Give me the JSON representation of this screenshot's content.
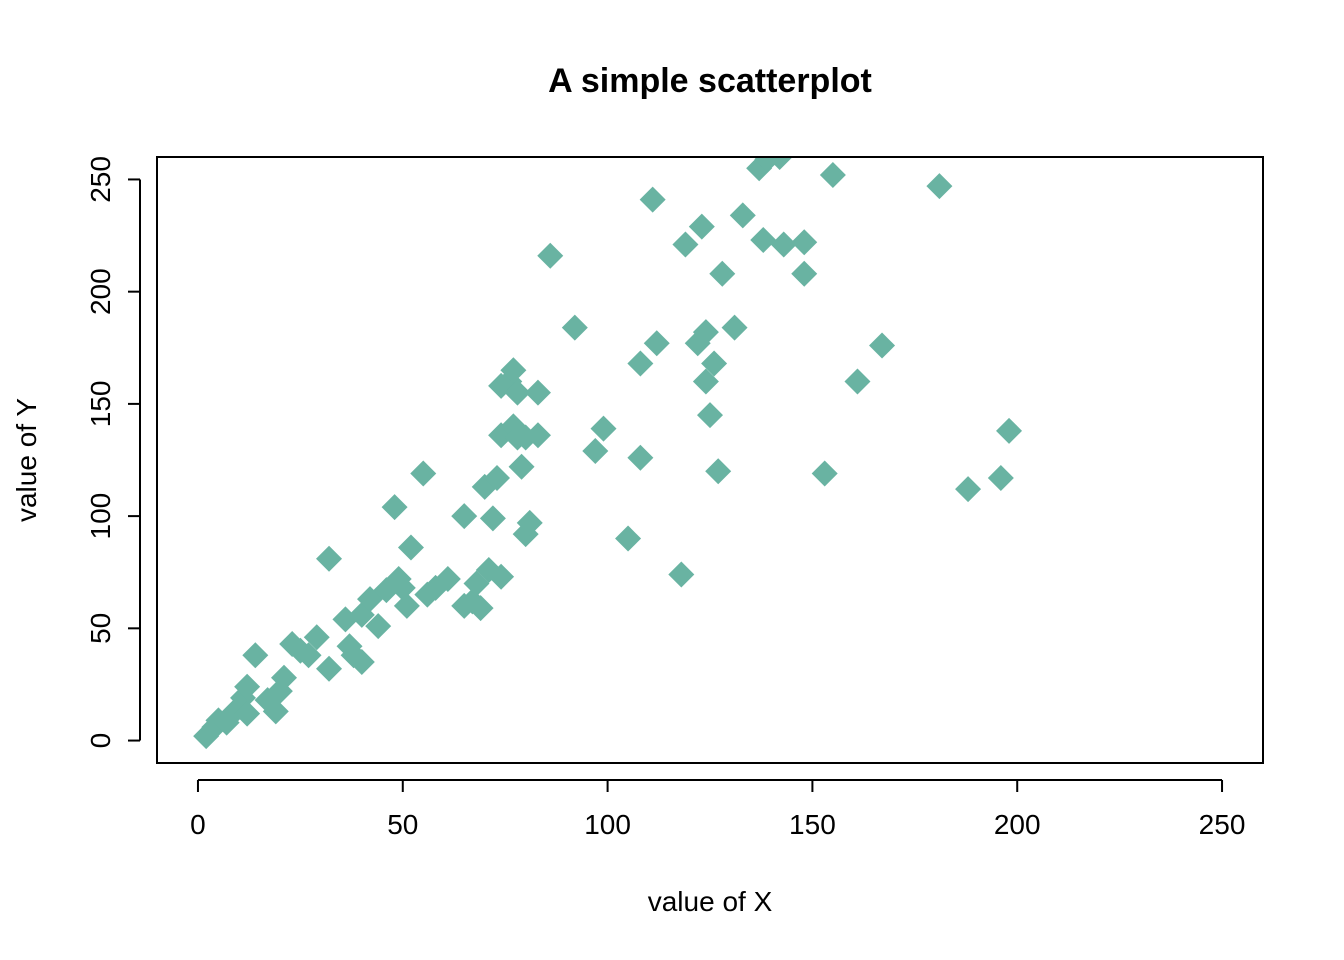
{
  "chart_data": {
    "type": "scatter",
    "title": "A simple scatterplot",
    "xlabel": "value of X",
    "ylabel": "value of Y",
    "xlim": [
      -10,
      260
    ],
    "ylim": [
      -10,
      260
    ],
    "x_ticks": [
      0,
      50,
      100,
      150,
      200,
      250
    ],
    "y_ticks": [
      0,
      50,
      100,
      150,
      200,
      250
    ],
    "grid": false,
    "marker": "filled-diamond",
    "colors": {
      "points": "#69B3A2",
      "axes": "#000000",
      "background": "#FFFFFF"
    },
    "points": [
      {
        "x": 2,
        "y": 2
      },
      {
        "x": 4,
        "y": 6
      },
      {
        "x": 5,
        "y": 9
      },
      {
        "x": 7,
        "y": 8
      },
      {
        "x": 9,
        "y": 13
      },
      {
        "x": 11,
        "y": 19
      },
      {
        "x": 12,
        "y": 24
      },
      {
        "x": 12,
        "y": 12
      },
      {
        "x": 14,
        "y": 38
      },
      {
        "x": 17,
        "y": 18
      },
      {
        "x": 19,
        "y": 13
      },
      {
        "x": 20,
        "y": 22
      },
      {
        "x": 21,
        "y": 28
      },
      {
        "x": 23,
        "y": 43
      },
      {
        "x": 25,
        "y": 40
      },
      {
        "x": 27,
        "y": 38
      },
      {
        "x": 29,
        "y": 46
      },
      {
        "x": 32,
        "y": 81
      },
      {
        "x": 32,
        "y": 32
      },
      {
        "x": 36,
        "y": 54
      },
      {
        "x": 37,
        "y": 42
      },
      {
        "x": 38,
        "y": 38
      },
      {
        "x": 40,
        "y": 56
      },
      {
        "x": 40,
        "y": 35
      },
      {
        "x": 42,
        "y": 63
      },
      {
        "x": 44,
        "y": 51
      },
      {
        "x": 46,
        "y": 67
      },
      {
        "x": 48,
        "y": 104
      },
      {
        "x": 49,
        "y": 72
      },
      {
        "x": 50,
        "y": 68
      },
      {
        "x": 51,
        "y": 60
      },
      {
        "x": 52,
        "y": 86
      },
      {
        "x": 55,
        "y": 119
      },
      {
        "x": 56,
        "y": 65
      },
      {
        "x": 58,
        "y": 68
      },
      {
        "x": 61,
        "y": 72
      },
      {
        "x": 65,
        "y": 100
      },
      {
        "x": 65,
        "y": 60
      },
      {
        "x": 67,
        "y": 62
      },
      {
        "x": 68,
        "y": 70
      },
      {
        "x": 69,
        "y": 59
      },
      {
        "x": 70,
        "y": 113
      },
      {
        "x": 71,
        "y": 76
      },
      {
        "x": 72,
        "y": 99
      },
      {
        "x": 73,
        "y": 117
      },
      {
        "x": 74,
        "y": 136
      },
      {
        "x": 74,
        "y": 73
      },
      {
        "x": 74,
        "y": 158
      },
      {
        "x": 76,
        "y": 160
      },
      {
        "x": 77,
        "y": 165
      },
      {
        "x": 77,
        "y": 140
      },
      {
        "x": 78,
        "y": 135
      },
      {
        "x": 78,
        "y": 155
      },
      {
        "x": 79,
        "y": 122
      },
      {
        "x": 80,
        "y": 135
      },
      {
        "x": 80,
        "y": 92
      },
      {
        "x": 81,
        "y": 97
      },
      {
        "x": 83,
        "y": 155
      },
      {
        "x": 83,
        "y": 136
      },
      {
        "x": 86,
        "y": 216
      },
      {
        "x": 92,
        "y": 184
      },
      {
        "x": 97,
        "y": 129
      },
      {
        "x": 99,
        "y": 139
      },
      {
        "x": 105,
        "y": 90
      },
      {
        "x": 108,
        "y": 168
      },
      {
        "x": 108,
        "y": 126
      },
      {
        "x": 111,
        "y": 241
      },
      {
        "x": 112,
        "y": 177
      },
      {
        "x": 118,
        "y": 74
      },
      {
        "x": 119,
        "y": 221
      },
      {
        "x": 122,
        "y": 177
      },
      {
        "x": 123,
        "y": 229
      },
      {
        "x": 124,
        "y": 160
      },
      {
        "x": 124,
        "y": 182
      },
      {
        "x": 125,
        "y": 145
      },
      {
        "x": 126,
        "y": 168
      },
      {
        "x": 127,
        "y": 120
      },
      {
        "x": 128,
        "y": 208
      },
      {
        "x": 131,
        "y": 184
      },
      {
        "x": 133,
        "y": 234
      },
      {
        "x": 137,
        "y": 255
      },
      {
        "x": 138,
        "y": 223
      },
      {
        "x": 139,
        "y": 259
      },
      {
        "x": 142,
        "y": 260
      },
      {
        "x": 143,
        "y": 221
      },
      {
        "x": 148,
        "y": 222
      },
      {
        "x": 148,
        "y": 208
      },
      {
        "x": 153,
        "y": 119
      },
      {
        "x": 155,
        "y": 252
      },
      {
        "x": 161,
        "y": 160
      },
      {
        "x": 167,
        "y": 176
      },
      {
        "x": 181,
        "y": 247
      },
      {
        "x": 188,
        "y": 112
      },
      {
        "x": 196,
        "y": 117
      },
      {
        "x": 198,
        "y": 138
      }
    ]
  }
}
